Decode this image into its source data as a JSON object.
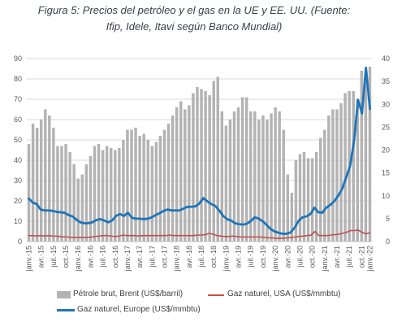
{
  "figure": {
    "title_line1": "Figura 5: Precios del petróleo y el gas en la UE y EE. UU. (Fuente:",
    "title_line2": "Ifip, Idele, Itavi según Banco Mundial)"
  },
  "chart_data": {
    "type": "bar",
    "x_tick_labels": [
      "janv.-15",
      "avr.-15",
      "juil.-15",
      "oct.-15",
      "janv.-16",
      "avr.-16",
      "juil.-16",
      "oct.-16",
      "janv.-17",
      "avr.-17",
      "juil.-17",
      "oct.-17",
      "janv.-18",
      "avr.-18",
      "juil.-18",
      "oct.-18",
      "janv.-19",
      "avr.-19",
      "juil.-19",
      "oct.-19",
      "janv.-20",
      "avr.-20",
      "juil.-20",
      "oct.-20",
      "janv.-21",
      "avr.-21",
      "juil.-21",
      "oct.-21",
      "janv.-22"
    ],
    "y_left": {
      "ylim": [
        0,
        90
      ],
      "ticks": [
        0,
        10,
        20,
        30,
        40,
        50,
        60,
        70,
        80,
        90
      ]
    },
    "y_right": {
      "ylim": [
        0,
        40
      ],
      "ticks": [
        0,
        5,
        10,
        15,
        20,
        25,
        30,
        35,
        40
      ]
    },
    "grid": true,
    "legend_position": "bottom",
    "series": [
      {
        "name": "Pétrole brut, Brent (US$/barril)",
        "kind": "bar",
        "axis": "left",
        "color": "#b3b3b3",
        "values": [
          48,
          58,
          56,
          60,
          65,
          62,
          56,
          47,
          47,
          48,
          44,
          38,
          31,
          33,
          38,
          42,
          47,
          48,
          45,
          47,
          46,
          45,
          46,
          50,
          55,
          55,
          56,
          52,
          53,
          50,
          47,
          49,
          52,
          55,
          58,
          62,
          66,
          69,
          65,
          67,
          73,
          76,
          75,
          74,
          72,
          79,
          81,
          64,
          57,
          60,
          64,
          66,
          71,
          71,
          64,
          64,
          60,
          62,
          60,
          63,
          66,
          64,
          55,
          33,
          24,
          40,
          43,
          44,
          41,
          41,
          44,
          51,
          55,
          62,
          65,
          65,
          68,
          73,
          74,
          74,
          70,
          84,
          81,
          86
        ]
      },
      {
        "name": "Gaz naturel, USA (US$/mmbtu)",
        "kind": "line",
        "axis": "right",
        "color": "#c0504d",
        "values": [
          1.3,
          1.3,
          1.2,
          1.3,
          1.2,
          1.3,
          1.2,
          1.2,
          1.1,
          1.0,
          1.0,
          0.9,
          0.9,
          0.9,
          0.9,
          0.9,
          1.0,
          1.1,
          1.2,
          1.3,
          1.3,
          1.2,
          1.1,
          1.2,
          1.4,
          1.3,
          1.3,
          1.3,
          1.2,
          1.3,
          1.3,
          1.3,
          1.3,
          1.3,
          1.3,
          1.3,
          1.4,
          1.3,
          1.3,
          1.3,
          1.3,
          1.3,
          1.3,
          1.4,
          1.4,
          1.5,
          1.8,
          1.6,
          1.3,
          1.2,
          1.1,
          1.1,
          1.2,
          1.1,
          1.0,
          1.0,
          1.0,
          1.0,
          1.0,
          1.0,
          0.9,
          0.8,
          0.8,
          0.7,
          0.7,
          0.7,
          0.8,
          0.9,
          1.0,
          1.1,
          1.2,
          1.3,
          1.4,
          2.2,
          1.3,
          1.3,
          1.3,
          1.4,
          1.5,
          1.6,
          1.8,
          2.0,
          2.4,
          2.4,
          2.5,
          2.0,
          1.7,
          1.9
        ]
      },
      {
        "name": "Gaz naturel, Europe (US$/mmbtu)",
        "kind": "line",
        "axis": "right",
        "color": "#1f74b8",
        "values": [
          9.4,
          8.5,
          8.2,
          7.0,
          6.8,
          6.8,
          6.7,
          6.5,
          6.4,
          6.3,
          5.8,
          5.5,
          4.8,
          4.2,
          4.0,
          4.0,
          4.2,
          4.7,
          4.9,
          4.6,
          4.2,
          4.6,
          5.6,
          6.0,
          5.6,
          6.3,
          5.2,
          5.0,
          5.0,
          4.9,
          5.0,
          5.3,
          5.8,
          6.2,
          6.7,
          7.0,
          6.8,
          6.8,
          6.8,
          7.2,
          7.6,
          7.6,
          7.7,
          8.3,
          9.5,
          8.8,
          8.2,
          7.8,
          6.8,
          5.6,
          4.9,
          4.6,
          4.0,
          3.8,
          3.7,
          3.9,
          4.5,
          5.3,
          5.0,
          4.4,
          3.6,
          2.7,
          2.2,
          1.9,
          1.7,
          1.7,
          2.0,
          3.0,
          4.5,
          5.3,
          5.5,
          6.0,
          7.4,
          6.4,
          6.3,
          7.4,
          8.0,
          8.8,
          10.0,
          11.5,
          14.0,
          16.5,
          22.0,
          31.0,
          28.0,
          38.0,
          29.0
        ]
      }
    ]
  },
  "legend": {
    "brent": "Pétrole brut, Brent (US$/barril)",
    "gas_usa": "Gaz naturel, USA (US$/mmbtu)",
    "gas_europe": "Gaz naturel, Europe (US$/mmbtu)"
  }
}
